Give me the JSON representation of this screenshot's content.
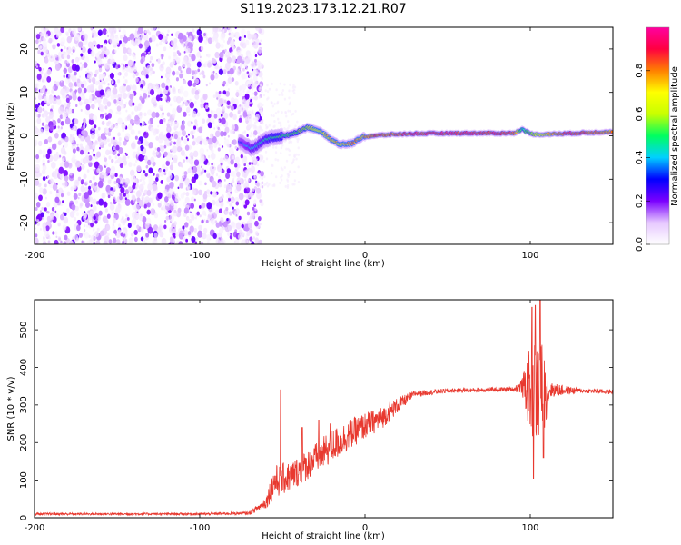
{
  "title": "S119.2023.173.12.21.R07",
  "chart_data": [
    {
      "type": "heatmap",
      "xlabel": "Height of straight line (km)",
      "ylabel": "Frequency (Hz)",
      "xlim": [
        -200,
        150
      ],
      "ylim": [
        -25,
        25
      ],
      "xticks": [
        -200,
        -100,
        0,
        100
      ],
      "yticks": [
        -20,
        -10,
        0,
        10,
        20
      ],
      "grid": false,
      "colorbar": {
        "label": "Normalized spectral amplitude",
        "range": [
          0,
          1
        ],
        "ticks": [
          0.0,
          0.2,
          0.4,
          0.6,
          0.8
        ],
        "colormap": [
          "#ffffff",
          "#e6c8ff",
          "#7a00ff",
          "#0000ff",
          "#00d0ff",
          "#00ff60",
          "#c8ff00",
          "#ffff00",
          "#ff8000",
          "#ff0040",
          "#ff00a0"
        ]
      },
      "noise_region": {
        "x_range": [
          -200,
          -70
        ],
        "freq_range": [
          -25,
          25
        ],
        "amplitude": 0.15
      },
      "tone_trace": [
        {
          "x": -75,
          "f": -1.5,
          "a": 0.35
        },
        {
          "x": -68,
          "f": -3.0,
          "a": 0.45
        },
        {
          "x": -60,
          "f": -0.8,
          "a": 0.5
        },
        {
          "x": -55,
          "f": -0.3,
          "a": 0.55
        },
        {
          "x": -48,
          "f": 0.0,
          "a": 0.55
        },
        {
          "x": -40,
          "f": 1.0,
          "a": 0.6
        },
        {
          "x": -35,
          "f": 2.0,
          "a": 0.65
        },
        {
          "x": -30,
          "f": 1.5,
          "a": 0.7
        },
        {
          "x": -25,
          "f": 0.5,
          "a": 0.75
        },
        {
          "x": -20,
          "f": -1.0,
          "a": 0.8
        },
        {
          "x": -15,
          "f": -2.0,
          "a": 0.8
        },
        {
          "x": -8,
          "f": -1.8,
          "a": 0.85
        },
        {
          "x": -2,
          "f": -0.3,
          "a": 0.85
        },
        {
          "x": 5,
          "f": 0.0,
          "a": 0.9
        },
        {
          "x": 15,
          "f": 0.3,
          "a": 0.9
        },
        {
          "x": 30,
          "f": 0.5,
          "a": 0.95
        },
        {
          "x": 60,
          "f": 0.6,
          "a": 0.95
        },
        {
          "x": 90,
          "f": 0.6,
          "a": 0.95
        },
        {
          "x": 95,
          "f": 1.5,
          "a": 0.5
        },
        {
          "x": 100,
          "f": 0.5,
          "a": 0.6
        },
        {
          "x": 105,
          "f": 0.3,
          "a": 0.7
        },
        {
          "x": 120,
          "f": 0.5,
          "a": 0.95
        },
        {
          "x": 140,
          "f": 0.8,
          "a": 0.9
        },
        {
          "x": 150,
          "f": 1.0,
          "a": 0.85
        }
      ]
    },
    {
      "type": "line",
      "xlabel": "Height of straight line (km)",
      "ylabel": "SNR (10 * v/v)",
      "xlim": [
        -200,
        150
      ],
      "ylim": [
        0,
        580
      ],
      "xticks": [
        -200,
        -100,
        0,
        100
      ],
      "yticks": [
        0,
        100,
        200,
        300,
        400,
        500
      ],
      "grid": false,
      "color": "#e8392f",
      "envelope": [
        {
          "x": -200,
          "mean": 10,
          "noise": 3
        },
        {
          "x": -100,
          "mean": 10,
          "noise": 3
        },
        {
          "x": -70,
          "mean": 12,
          "noise": 4
        },
        {
          "x": -60,
          "mean": 40,
          "noise": 15
        },
        {
          "x": -55,
          "mean": 95,
          "noise": 45
        },
        {
          "x": -45,
          "mean": 110,
          "noise": 40
        },
        {
          "x": -35,
          "mean": 140,
          "noise": 40
        },
        {
          "x": -20,
          "mean": 190,
          "noise": 45
        },
        {
          "x": -10,
          "mean": 220,
          "noise": 40
        },
        {
          "x": 0,
          "mean": 245,
          "noise": 35
        },
        {
          "x": 10,
          "mean": 265,
          "noise": 30
        },
        {
          "x": 20,
          "mean": 300,
          "noise": 20
        },
        {
          "x": 30,
          "mean": 330,
          "noise": 8
        },
        {
          "x": 50,
          "mean": 338,
          "noise": 6
        },
        {
          "x": 90,
          "mean": 342,
          "noise": 6
        },
        {
          "x": 95,
          "mean": 350,
          "noise": 20
        },
        {
          "x": 100,
          "mean": 340,
          "noise": 120
        },
        {
          "x": 106,
          "mean": 330,
          "noise": 160
        },
        {
          "x": 112,
          "mean": 340,
          "noise": 20
        },
        {
          "x": 130,
          "mean": 338,
          "noise": 6
        },
        {
          "x": 150,
          "mean": 335,
          "noise": 6
        }
      ],
      "spikes": [
        {
          "x": -51,
          "y": 340
        },
        {
          "x": -38,
          "y": 240
        },
        {
          "x": -28,
          "y": 260
        },
        {
          "x": -21,
          "y": 250
        },
        {
          "x": 101,
          "y": 560
        },
        {
          "x": 103,
          "y": 565
        },
        {
          "x": 106,
          "y": 580
        },
        {
          "x": 102,
          "y": 105
        },
        {
          "x": 108,
          "y": 160
        }
      ]
    }
  ]
}
